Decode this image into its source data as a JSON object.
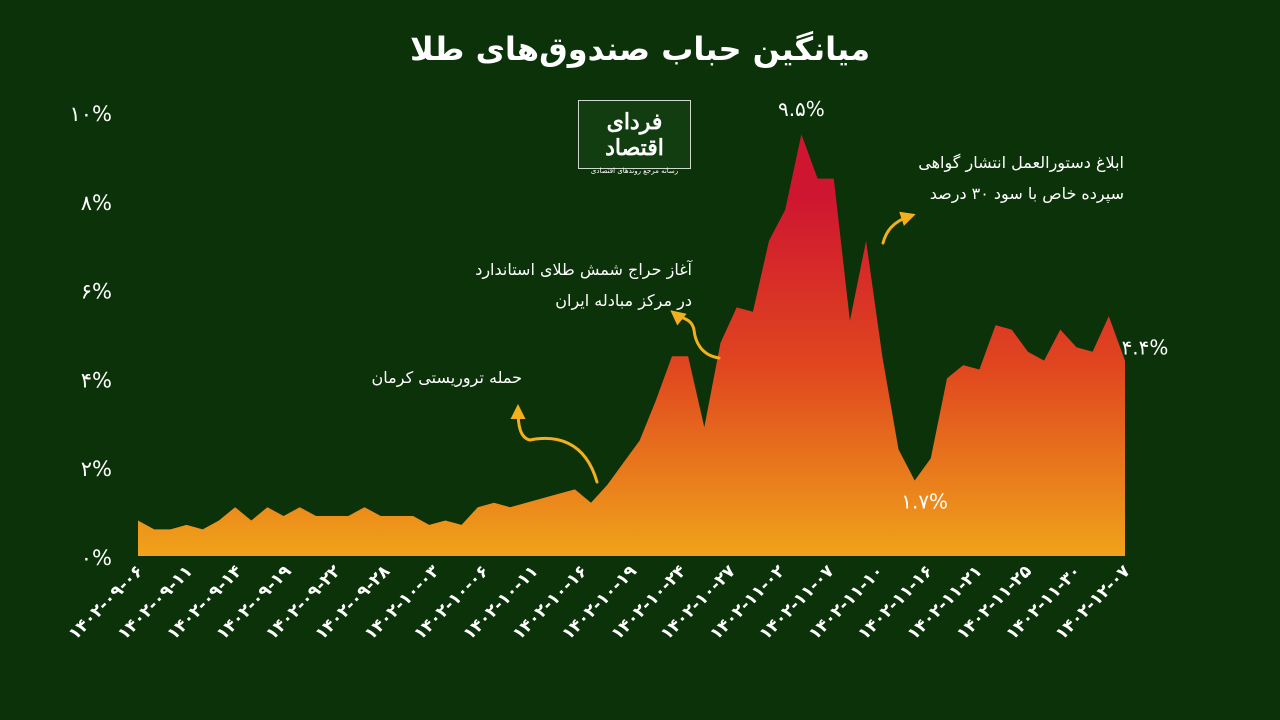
{
  "title": "میانگین حباب صندوق‌های طلا",
  "logo": {
    "name": "فردای اقتصاد",
    "tagline": "رسانه مرجع روندهای اقتصادی"
  },
  "colors": {
    "background": "#0b3208",
    "area_top": "#cf1630",
    "area_mid": "#e0461f",
    "area_bottom": "#f0a31a",
    "arrow": "#f2b01e"
  },
  "chart_data": {
    "type": "area",
    "title": "میانگین حباب صندوق‌های طلا",
    "xlabel": "",
    "ylabel": "",
    "ylim": [
      0,
      10
    ],
    "y_ticks": [
      {
        "value": 0,
        "label": "۰%"
      },
      {
        "value": 2,
        "label": "۲%"
      },
      {
        "value": 4,
        "label": "۴%"
      },
      {
        "value": 6,
        "label": "۶%"
      },
      {
        "value": 8,
        "label": "۸%"
      },
      {
        "value": 10,
        "label": "۱۰%"
      }
    ],
    "x_tick_labels": [
      "۱۴۰۲-۰۹-۰۶",
      "۱۴۰۲-۰۹-۱۱",
      "۱۴۰۲-۰۹-۱۴",
      "۱۴۰۲-۰۹-۱۹",
      "۱۴۰۲-۰۹-۲۲",
      "۱۴۰۲-۰۹-۲۸",
      "۱۴۰۲-۱۰-۰۳",
      "۱۴۰۲-۱۰-۰۶",
      "۱۴۰۲-۱۰-۱۱",
      "۱۴۰۲-۱۰-۱۶",
      "۱۴۰۲-۱۰-۱۹",
      "۱۴۰۲-۱۰-۲۴",
      "۱۴۰۲-۱۰-۲۷",
      "۱۴۰۲-۱۱-۰۲",
      "۱۴۰۲-۱۱-۰۷",
      "۱۴۰۲-۱۱-۱۰",
      "۱۴۰۲-۱۱-۱۶",
      "۱۴۰۲-۱۱-۲۱",
      "۱۴۰۲-۱۱-۲۵",
      "۱۴۰۲-۱۱-۳۰",
      "۱۴۰۲-۱۲-۰۷"
    ],
    "values": [
      0.8,
      0.6,
      0.6,
      0.7,
      0.6,
      0.8,
      1.1,
      0.8,
      1.1,
      0.9,
      1.1,
      0.9,
      0.9,
      0.9,
      1.1,
      0.9,
      0.9,
      0.9,
      0.7,
      0.8,
      0.7,
      1.1,
      1.2,
      1.1,
      1.2,
      1.3,
      1.4,
      1.5,
      1.2,
      1.6,
      2.1,
      2.6,
      3.5,
      4.5,
      4.5,
      2.9,
      4.8,
      5.6,
      5.5,
      7.1,
      7.8,
      9.5,
      8.5,
      8.5,
      5.3,
      7.1,
      4.5,
      2.4,
      1.7,
      2.2,
      4.0,
      4.3,
      4.2,
      5.2,
      5.1,
      4.6,
      4.4,
      5.1,
      4.7,
      4.6,
      5.4,
      4.4
    ],
    "point_labels": [
      {
        "index": 41,
        "label": "۹.۵%"
      },
      {
        "index": 48,
        "label": "۱.۷%"
      },
      {
        "index": 61,
        "label": "۴.۴%"
      }
    ],
    "annotations": [
      {
        "index": 28,
        "text": [
          "حمله تروریستی کرمان"
        ]
      },
      {
        "index": 36,
        "text": [
          "آغاز حراج شمش طلای استاندارد",
          "در مرکز مبادله ایران"
        ]
      },
      {
        "index": 46,
        "text": [
          "ابلاغ دستورالعمل انتشار گواهی",
          "سپرده خاص با سود ۳۰ درصد"
        ]
      }
    ],
    "grid": false,
    "legend": "none"
  }
}
